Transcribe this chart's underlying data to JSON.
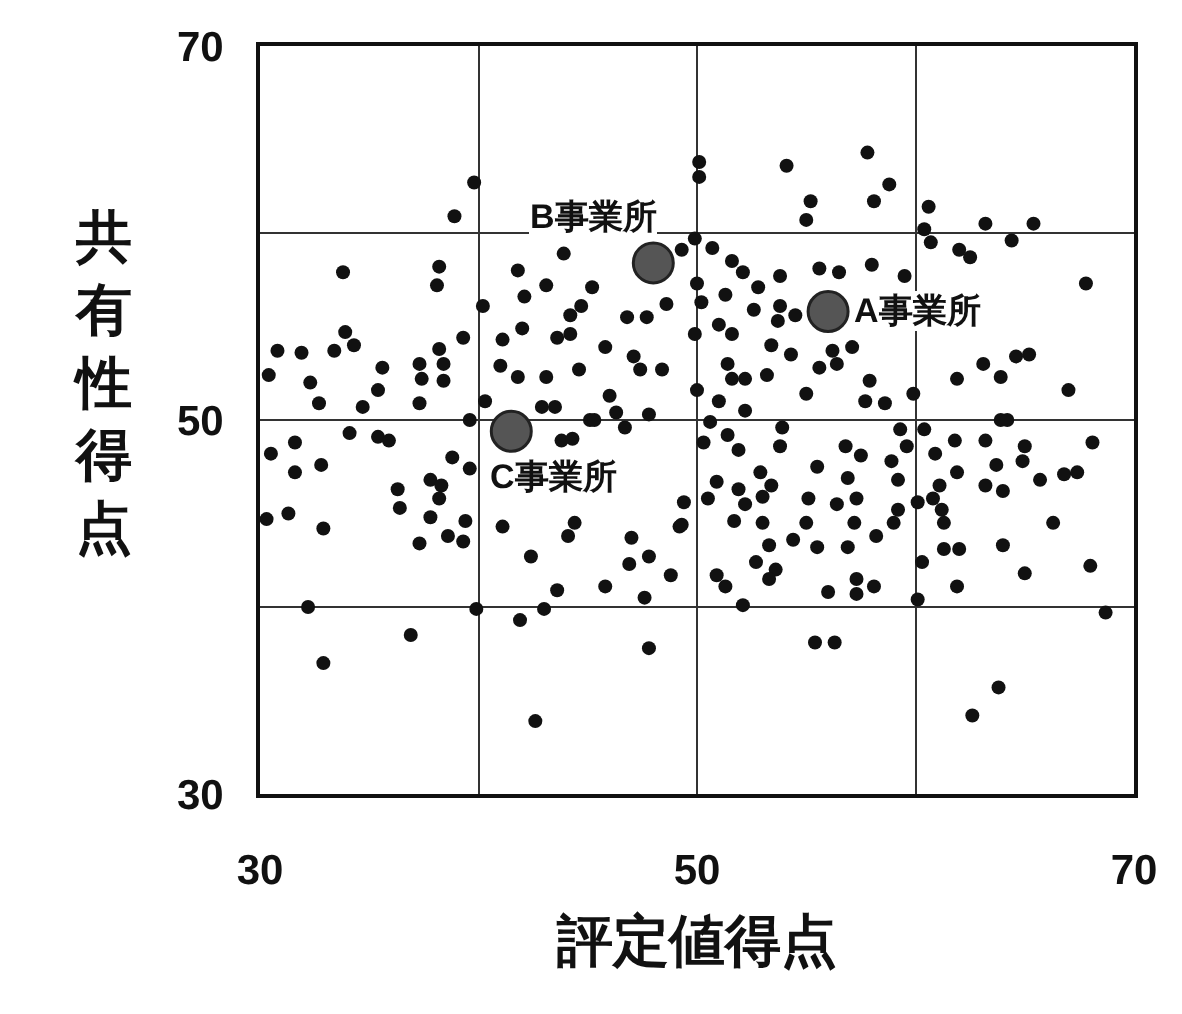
{
  "chart_data": {
    "type": "scatter",
    "xlabel": "評定値得点",
    "ylabel": "共有性得点",
    "xlim": [
      30,
      70
    ],
    "ylim": [
      30,
      70
    ],
    "xticks": [
      30,
      {
        "value": 40,
        "label": null
      },
      50,
      {
        "value": 60,
        "label": null
      },
      70
    ],
    "yticks": [
      30,
      {
        "value": 40,
        "label": null
      },
      50,
      {
        "value": 60,
        "label": null
      },
      70
    ],
    "grid": true,
    "marker": "circle",
    "annotations": [
      {
        "text": "B事業所",
        "x": 48.0,
        "y": 58.4
      },
      {
        "text": "A事業所",
        "x": 56.0,
        "y": 55.8
      },
      {
        "text": "C事業所",
        "x": 41.5,
        "y": 49.4
      }
    ],
    "series": [
      {
        "color": "#111111",
        "x": [
          39.8,
          38.9,
          33.8,
          38.2,
          38.1,
          40.2,
          43.9,
          41.8,
          43.1,
          45.2,
          42.1,
          41.1,
          42.0,
          43.6,
          44.2,
          44.2,
          44.7,
          30.8,
          31.9,
          33.4,
          33.9,
          34.3,
          30.4,
          32.3,
          32.7,
          34.7,
          35.4,
          35.6,
          37.3,
          38.2,
          38.4,
          37.4,
          38.4,
          39.3,
          37.3,
          41.0,
          41.8,
          43.1,
          44.6,
          42.9,
          43.5,
          46.0,
          47.1,
          47.7,
          48.6,
          46.8,
          47.4,
          48.4,
          45.8,
          45.1,
          40.3,
          50.1,
          50.1,
          54.1,
          57.8,
          58.8,
          58.1,
          55.2,
          55.0,
          60.6,
          60.4,
          60.7,
          63.2,
          65.4,
          64.4,
          62.0,
          62.5,
          67.8,
          49.9,
          50.7,
          49.3,
          51.6,
          52.1,
          53.8,
          55.6,
          56.5,
          58.0,
          59.5,
          52.8,
          51.3,
          50.0,
          50.2,
          52.6,
          53.8,
          54.5,
          53.7,
          51.0,
          51.6,
          49.9,
          53.4,
          54.3,
          56.2,
          57.1,
          56.4,
          55.6,
          51.4,
          51.6,
          52.2,
          53.2,
          57.9,
          57.7,
          58.6,
          55.0,
          51.0,
          50.0,
          59.9,
          61.9,
          63.1,
          63.9,
          64.6,
          65.2,
          67.0,
          63.9,
          31.6,
          30.5,
          31.6,
          32.8,
          34.1,
          35.4,
          35.9,
          38.8,
          39.6,
          39.6,
          36.3,
          36.4,
          37.8,
          38.3,
          38.2,
          37.8,
          39.4,
          38.6,
          39.3,
          37.3,
          30.3,
          31.3,
          32.9,
          32.2,
          32.9,
          36.9,
          39.9,
          41.1,
          42.4,
          41.9,
          43.0,
          42.6,
          43.6,
          44.1,
          44.4,
          45.8,
          46.9,
          47.8,
          48.8,
          47.0,
          47.6,
          47.8,
          49.2,
          43.8,
          45.3,
          46.3,
          46.7,
          47.8,
          44.3,
          50.6,
          51.9,
          50.3,
          51.4,
          52.2,
          53.9,
          53.8,
          55.5,
          56.8,
          57.5,
          56.9,
          59.3,
          59.6,
          60.4,
          61.8,
          60.9,
          61.9,
          61.1,
          60.8,
          60.1,
          63.2,
          63.7,
          65.0,
          64.9,
          63.2,
          64.0,
          65.7,
          66.8,
          67.4,
          68.1,
          66.3,
          64.0,
          65.0,
          68.0,
          68.7,
          64.2,
          61.9,
          62.0,
          61.3,
          61.3,
          61.2,
          60.1,
          60.3,
          59.2,
          59.2,
          58.9,
          59.0,
          58.2,
          57.2,
          57.3,
          56.4,
          55.1,
          55.0,
          54.4,
          55.5,
          56.9,
          53.4,
          52.9,
          53.0,
          51.9,
          52.2,
          51.7,
          53.0,
          53.3,
          52.7,
          53.6,
          53.3,
          50.9,
          51.3,
          52.1,
          56.0,
          57.3,
          57.3,
          58.1,
          55.4,
          56.3,
          63.8,
          62.6,
          50.9,
          50.5,
          49.4,
          49.3
        ],
        "values": [
          62.7,
          60.9,
          57.9,
          58.2,
          57.2,
          56.1,
          58.9,
          58.0,
          57.2,
          57.1,
          56.6,
          54.3,
          54.9,
          54.4,
          54.6,
          55.6,
          56.1,
          53.7,
          53.6,
          53.7,
          54.7,
          54.0,
          52.4,
          52.0,
          50.9,
          50.7,
          51.6,
          52.8,
          53.0,
          53.8,
          53.0,
          52.2,
          52.1,
          54.4,
          50.9,
          52.9,
          52.3,
          52.3,
          52.7,
          50.7,
          50.7,
          51.3,
          53.4,
          55.5,
          56.2,
          55.5,
          52.7,
          52.7,
          53.9,
          50.0,
          51.0,
          63.8,
          63.0,
          63.6,
          64.3,
          62.6,
          61.7,
          61.7,
          60.7,
          61.4,
          60.2,
          59.5,
          60.5,
          60.5,
          59.6,
          59.1,
          58.7,
          57.3,
          59.7,
          59.2,
          59.1,
          58.5,
          57.9,
          57.7,
          58.1,
          57.9,
          58.3,
          57.7,
          57.1,
          56.7,
          57.3,
          56.3,
          55.9,
          56.1,
          55.6,
          55.3,
          55.1,
          54.6,
          54.6,
          54.0,
          53.5,
          53.7,
          53.9,
          53.0,
          52.8,
          53.0,
          52.2,
          52.2,
          52.4,
          52.1,
          51.0,
          50.9,
          51.4,
          51.0,
          51.6,
          51.4,
          52.2,
          53.0,
          52.3,
          53.4,
          53.5,
          51.6,
          50.0,
          48.8,
          48.2,
          47.2,
          47.6,
          49.3,
          49.1,
          48.9,
          48.0,
          47.4,
          50.0,
          46.3,
          45.3,
          46.8,
          46.5,
          45.8,
          44.8,
          44.6,
          43.8,
          43.5,
          43.4,
          44.7,
          45.0,
          44.2,
          40.0,
          37.0,
          38.5,
          39.9,
          44.3,
          42.7,
          39.3,
          39.9,
          33.9,
          40.9,
          43.8,
          44.5,
          41.1,
          42.3,
          42.7,
          41.7,
          43.7,
          40.5,
          37.8,
          44.3,
          48.9,
          50.0,
          50.4,
          49.6,
          50.3,
          49.0,
          49.9,
          48.4,
          48.8,
          49.2,
          50.5,
          49.6,
          48.6,
          47.5,
          48.6,
          48.1,
          46.9,
          49.5,
          48.6,
          49.5,
          48.9,
          48.2,
          47.2,
          46.5,
          45.8,
          45.6,
          48.9,
          47.6,
          48.6,
          47.8,
          46.5,
          46.2,
          46.8,
          47.1,
          47.2,
          48.8,
          44.5,
          43.3,
          41.8,
          42.2,
          39.7,
          50.0,
          41.1,
          43.1,
          43.1,
          44.5,
          45.2,
          40.4,
          42.4,
          45.2,
          46.8,
          47.8,
          44.5,
          43.8,
          44.5,
          45.8,
          45.5,
          45.8,
          44.5,
          43.6,
          43.2,
          43.2,
          46.5,
          47.2,
          45.9,
          46.3,
          45.5,
          44.6,
          44.5,
          43.3,
          42.4,
          42.0,
          41.5,
          41.7,
          41.1,
          40.1,
          40.8,
          40.7,
          41.5,
          41.1,
          38.1,
          38.1,
          35.7,
          34.2,
          46.7,
          45.8,
          45.6,
          44.4
        ]
      },
      {
        "color": "#555555",
        "x": [
          48.0,
          56.0,
          41.5
        ],
        "values": [
          58.4,
          55.8,
          49.4
        ]
      }
    ]
  }
}
